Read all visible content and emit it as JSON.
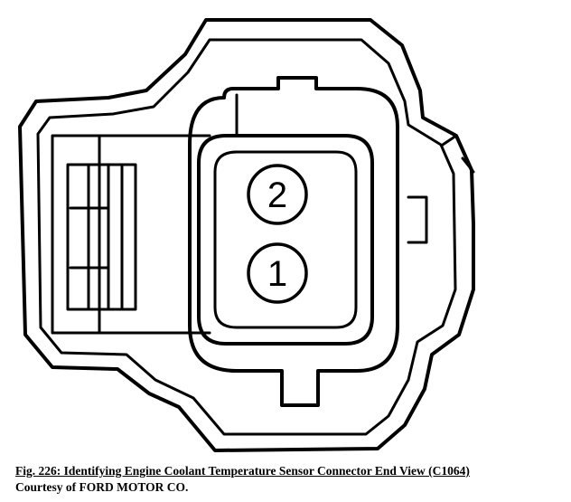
{
  "diagram": {
    "pins": [
      {
        "label": "2"
      },
      {
        "label": "1"
      }
    ]
  },
  "caption": {
    "figure_title": "Fig. 226: Identifying Engine Coolant Temperature Sensor Connector End View (C1064)",
    "credit": "Courtesy of FORD MOTOR CO."
  }
}
